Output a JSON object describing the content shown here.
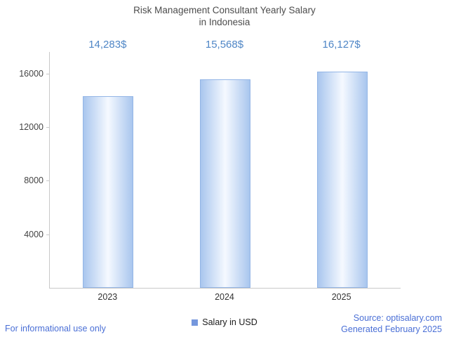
{
  "title": {
    "line1": "Risk Management Consultant Yearly Salary",
    "line2": "in Indonesia"
  },
  "chart_data": {
    "type": "bar",
    "title": "Risk Management Consultant Yearly Salary in Indonesia",
    "categories": [
      "2023",
      "2024",
      "2025"
    ],
    "values": [
      14283,
      15568,
      16127
    ],
    "value_labels": [
      "14,283$",
      "15,568$",
      "16,127$"
    ],
    "series": [
      {
        "name": "Salary in USD",
        "values": [
          14283,
          15568,
          16127
        ]
      }
    ],
    "xlabel": "",
    "ylabel": "",
    "ylim": [
      0,
      17600
    ],
    "yticks": [
      4000,
      8000,
      12000,
      16000
    ],
    "grid": false,
    "legend_position": "bottom"
  },
  "legend": {
    "label": "Salary in USD"
  },
  "footer": {
    "left": "For informational use only",
    "source": "Source: optisalary.com",
    "generated": "Generated February 2025"
  },
  "colors": {
    "bar_fill_edge": "#a9c6ee",
    "bar_fill_center": "#f5f9ff",
    "bar_border": "#93b5e6",
    "value_label": "#4f86c6",
    "footer_link": "#4a6fd6",
    "axis": "#c9c9c9",
    "title_text": "#4c4c4c",
    "legend_swatch": "#7597dd"
  }
}
